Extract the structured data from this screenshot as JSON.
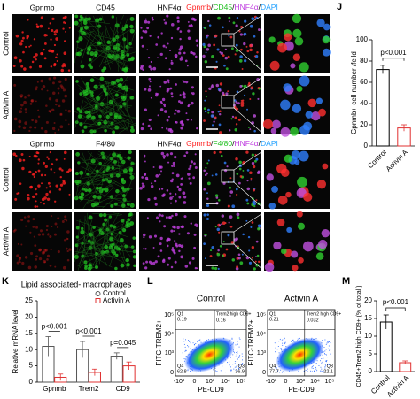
{
  "panels": [
    "I",
    "J",
    "K",
    "L",
    "M"
  ],
  "images": {
    "blocks": [
      {
        "headers": [
          {
            "text": "Gpnmb",
            "color": "#ff2020"
          },
          {
            "text": "CD45",
            "color": "#20c020"
          },
          {
            "text": "HNF4α",
            "color": "#c040e0"
          }
        ],
        "merge": [
          {
            "text": "Gpnmb",
            "color": "#ff2020"
          },
          {
            "text": "/",
            "color": "#000000"
          },
          {
            "text": "CD45",
            "color": "#20c020"
          },
          {
            "text": "/",
            "color": "#000000"
          },
          {
            "text": "HNF4α",
            "color": "#c040e0"
          },
          {
            "text": "/",
            "color": "#000000"
          },
          {
            "text": "DAPI",
            "color": "#20a0ff"
          }
        ],
        "rows": [
          "Control",
          "Activin A"
        ]
      },
      {
        "headers": [
          {
            "text": "Gpnmb",
            "color": "#ff2020"
          },
          {
            "text": "F4/80",
            "color": "#20c020"
          },
          {
            "text": "HNF4α",
            "color": "#c040e0"
          }
        ],
        "merge": [
          {
            "text": "Gpnmb",
            "color": "#ff2020"
          },
          {
            "text": "/",
            "color": "#000000"
          },
          {
            "text": "F4/80",
            "color": "#20c020"
          },
          {
            "text": "/",
            "color": "#000000"
          },
          {
            "text": "HNF4α",
            "color": "#c040e0"
          },
          {
            "text": "/",
            "color": "#000000"
          },
          {
            "text": "DAPI",
            "color": "#20a0ff"
          }
        ],
        "rows": [
          "Control",
          "Activin A"
        ]
      }
    ]
  },
  "flow": {
    "ylabel": "FITC-TREM2+",
    "xlabel": "PE-CD9",
    "yticks": [
      "0",
      "10³",
      "10⁴",
      "10⁵"
    ],
    "xticks": [
      "-10³",
      "0",
      "10³",
      "10⁴",
      "10⁵"
    ],
    "gate": "Trem2 high CD9+",
    "plots": [
      {
        "title": "Control",
        "quadrants": [
          {
            "name": "Q1",
            "value": 0.19
          },
          {
            "name": "Q2",
            "value": 0.16
          },
          {
            "name": "Q4",
            "value": 62.8
          },
          {
            "name": "Q3",
            "value": 36.9
          }
        ]
      },
      {
        "title": "Activin A",
        "quadrants": [
          {
            "name": "Q1",
            "value": 0.21
          },
          {
            "name": "Q2",
            "value": 0.032
          },
          {
            "name": "Q4",
            "value": 77.7
          },
          {
            "name": "Q3",
            "value": 22.1
          }
        ]
      }
    ]
  },
  "chart_data": [
    {
      "type": "bar",
      "ylabel": "Gpnmb+ cell number /feild",
      "categories": [
        "Control",
        "Activin A"
      ],
      "values": [
        72,
        17
      ],
      "errors": [
        4,
        3
      ],
      "colors": [
        "#000000",
        "#e03030"
      ],
      "ylim": [
        0,
        100
      ],
      "yticks": [
        0,
        20,
        40,
        60,
        80,
        100
      ],
      "annotations": [
        "p<0.001"
      ]
    },
    {
      "type": "grouped_bar",
      "title": "Lipid associated- macrophages",
      "ylabel": "Relative mRNA level",
      "categories": [
        "Gpnmb",
        "Trem2",
        "CD9"
      ],
      "series": [
        {
          "name": "Control",
          "color": "#555555",
          "values": [
            11,
            10,
            8
          ],
          "errors": [
            3,
            2.5,
            1
          ]
        },
        {
          "name": "Activin A",
          "color": "#e03030",
          "values": [
            1.5,
            3,
            5
          ],
          "errors": [
            1,
            1,
            1.2
          ]
        }
      ],
      "ylim": [
        0,
        25
      ],
      "yticks": [
        0,
        5,
        10,
        15,
        20,
        25
      ],
      "annotations": [
        "p<0.001",
        "p<0.001",
        "p=0.045"
      ]
    },
    {
      "type": "bar",
      "ylabel": "CD45+Trem2 high CD9+ (% of total )",
      "categories": [
        "Control",
        "Activin A"
      ],
      "values": [
        14,
        2.5
      ],
      "errors": [
        2,
        0.5
      ],
      "colors": [
        "#000000",
        "#e03030"
      ],
      "ylim": [
        0,
        20
      ],
      "yticks": [
        0,
        5,
        10,
        15,
        20
      ],
      "annotations": [
        "p<0.001"
      ]
    }
  ]
}
